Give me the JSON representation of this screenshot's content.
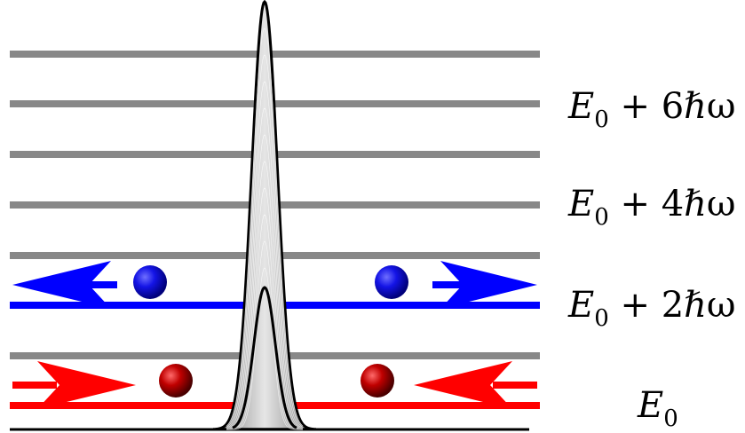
{
  "labels": {
    "level6": {
      "E": "E",
      "sub": "0",
      "rest": " + 6ℏω"
    },
    "level4": {
      "E": "E",
      "sub": "0",
      "rest": " + 4ℏω"
    },
    "level2": {
      "E": "E",
      "sub": "0",
      "rest": " + 2ℏω"
    },
    "level0": {
      "E": "E",
      "sub": "0"
    }
  },
  "colors": {
    "level_line": "#888888",
    "blue": "#0000ff",
    "red": "#ff0000",
    "barrier_fill": "#999999",
    "barrier_stroke": "#000000"
  }
}
